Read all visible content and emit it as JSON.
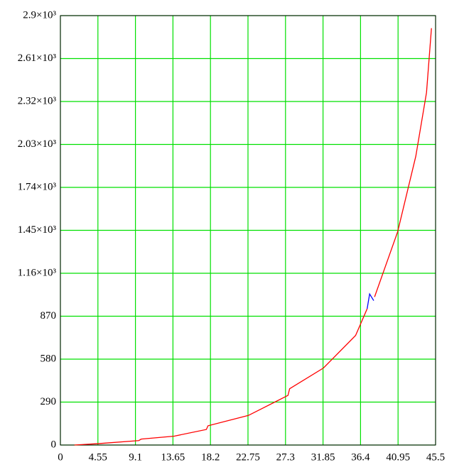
{
  "chart_data": {
    "type": "line",
    "x": [
      1.7,
      4.7,
      9.5,
      9.8,
      13.8,
      17.7,
      17.9,
      22.8,
      27.6,
      27.8,
      31.9,
      35.8,
      37.2,
      37.5,
      38.0,
      38.1,
      40.9,
      43.1,
      44.4,
      45.0
    ],
    "series": [
      {
        "color": "#ff0000",
        "values": [
          0,
          10,
          30,
          40,
          60,
          105,
          130,
          200,
          335,
          380,
          520,
          740,
          920,
          null,
          null,
          1000,
          1440,
          1950,
          2380,
          2815
        ]
      },
      {
        "color": "#0000ff",
        "values": [
          null,
          null,
          null,
          null,
          null,
          null,
          null,
          null,
          null,
          null,
          null,
          null,
          920,
          1020,
          975,
          null,
          null,
          null,
          null,
          null
        ]
      }
    ],
    "xlim": [
      0,
      45.5
    ],
    "xticks": [
      0,
      4.55,
      9.1,
      13.65,
      18.2,
      22.75,
      27.3,
      31.85,
      36.4,
      40.95,
      45.5
    ],
    "ylim": [
      0,
      2900
    ],
    "yticks": [
      0,
      290,
      580,
      870,
      {
        "value": 1160,
        "label": "1.16×10³"
      },
      {
        "value": 1450,
        "label": "1.45×10³"
      },
      {
        "value": 1740,
        "label": "1.74×10³"
      },
      {
        "value": 2030,
        "label": "2.03×10³"
      },
      {
        "value": 2320,
        "label": "2.32×10³"
      },
      {
        "value": 2610,
        "label": "2.61×10³"
      },
      {
        "value": 2900,
        "label": "2.9×10³"
      }
    ],
    "grid": true,
    "grid_color": "#00e000"
  }
}
